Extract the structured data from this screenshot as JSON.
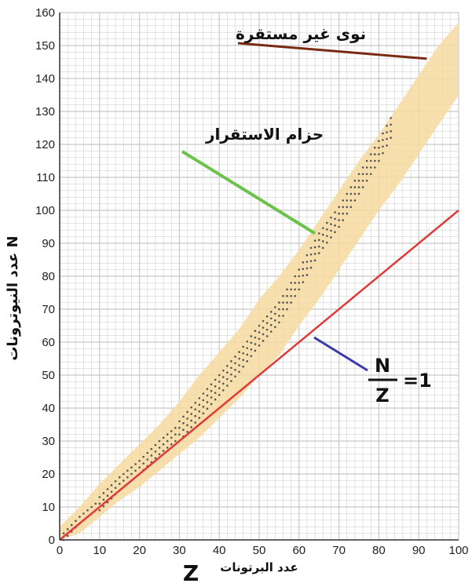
{
  "chart_data": {
    "type": "scatter",
    "title": "",
    "xlabel_letter": "Z",
    "xlabel_text": "عدد البرتونات",
    "ylabel": "عدد النيوترونات N",
    "xlim": [
      0,
      100
    ],
    "ylim": [
      0,
      160
    ],
    "x_ticks": [
      "0",
      "10",
      "20",
      "30",
      "40",
      "50",
      "60",
      "70",
      "80",
      "90",
      "100"
    ],
    "y_ticks": [
      "0",
      "10",
      "20",
      "30",
      "40",
      "50",
      "60",
      "70",
      "80",
      "90",
      "100",
      "110",
      "120",
      "130",
      "140",
      "150",
      "160"
    ],
    "grid": true,
    "annotations": {
      "unstable": "نوى غير مستقرة",
      "band": "حزام الاستقرار",
      "ratio_numerator": "N",
      "ratio_denominator": "Z",
      "ratio_value": "=1"
    },
    "ratio_line": {
      "x": [
        0,
        100
      ],
      "y": [
        0,
        100
      ]
    },
    "stable_nuclei_center": {
      "x": [
        1,
        5,
        10,
        15,
        20,
        25,
        30,
        35,
        40,
        45,
        50,
        55,
        60,
        65,
        70,
        75,
        80,
        83
      ],
      "y": [
        1,
        6,
        11,
        17,
        22,
        28,
        33,
        40,
        47,
        54,
        62,
        69,
        79,
        90,
        98,
        108,
        118,
        125
      ]
    },
    "band_region": {
      "x": [
        0,
        5,
        10,
        15,
        20,
        25,
        30,
        35,
        40,
        45,
        50,
        55,
        60,
        65,
        70,
        75,
        80,
        85,
        90,
        95,
        100
      ],
      "ymin": [
        0,
        2,
        7,
        12,
        16,
        21,
        26,
        31,
        37,
        43,
        50,
        56,
        65,
        73,
        82,
        91,
        100,
        108,
        117,
        126,
        135
      ],
      "ymax": [
        4,
        10,
        17,
        23,
        29,
        35,
        42,
        50,
        57,
        64,
        73,
        80,
        88,
        97,
        106,
        115,
        123,
        132,
        141,
        150,
        157
      ]
    },
    "colors": {
      "band": "#f7d9a0",
      "dots": "#555555",
      "ratio_line": "#e03a3a",
      "unstable_pointer": "#7a2a12",
      "band_pointer": "#6cc24a",
      "ratio_pointer": "#3a3aa8",
      "grid": "#c8c8c8"
    }
  }
}
